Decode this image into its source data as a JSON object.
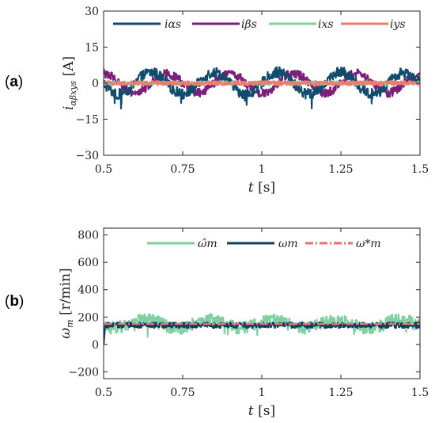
{
  "chart_data": [
    {
      "type": "line",
      "panel_label": "(a)",
      "xlabel": "t [s]",
      "ylabel": "i_αβxys [A]",
      "xlim": [
        0.5,
        1.5
      ],
      "ylim": [
        -30,
        30
      ],
      "xticks": [
        0.5,
        0.75,
        1,
        1.25,
        1.5
      ],
      "xtick_labels": [
        "0.5",
        "0.75",
        "1",
        "1.25",
        "1.5"
      ],
      "yticks": [
        -30,
        -15,
        0,
        15,
        30
      ],
      "ytick_labels": [
        "−30",
        "−15",
        "0",
        "15",
        "30"
      ],
      "legend_position": "top",
      "series": [
        {
          "name": "iαs",
          "color": "#0f4c6e",
          "kind": "sine-noisy",
          "amplitude": 4.5,
          "frequency_hz": 5.0,
          "phase": 0.0,
          "noise": 2.2,
          "x": [
            0.5,
            0.55,
            0.6,
            0.65,
            0.7,
            0.75,
            0.8,
            0.85,
            0.9,
            0.95,
            1.0,
            1.05,
            1.1,
            1.15,
            1.2,
            1.25,
            1.3,
            1.35,
            1.4,
            1.45,
            1.5
          ],
          "y": [
            0,
            3,
            4.5,
            3,
            0,
            -3,
            -4.5,
            -3,
            0,
            3,
            4.5,
            3,
            0,
            -3,
            -4.5,
            -3,
            0,
            3,
            4.5,
            3,
            0
          ]
        },
        {
          "name": "iβs",
          "color": "#7b1f7a",
          "kind": "sine-noisy",
          "amplitude": 4.0,
          "frequency_hz": 5.0,
          "phase": -1.5708,
          "noise": 1.8,
          "x": [
            0.5,
            0.55,
            0.6,
            0.65,
            0.7,
            0.75,
            0.8,
            0.85,
            0.9,
            0.95,
            1.0,
            1.05,
            1.1,
            1.15,
            1.2,
            1.25,
            1.3,
            1.35,
            1.4,
            1.45,
            1.5
          ],
          "y": [
            -4,
            -2.8,
            0,
            2.8,
            4,
            2.8,
            0,
            -2.8,
            -4,
            -2.8,
            0,
            2.8,
            4,
            2.8,
            0,
            -2.8,
            -4,
            -2.8,
            0,
            2.8,
            4
          ]
        },
        {
          "name": "ixs",
          "color": "#7fd1a3",
          "kind": "noise",
          "amplitude": 0.6,
          "frequency_hz": 0,
          "phase": 0,
          "noise": 0.8,
          "x": [
            0.5,
            1.5
          ],
          "y": [
            0,
            0
          ]
        },
        {
          "name": "iys",
          "color": "#ef7b6f",
          "kind": "noise",
          "amplitude": 0.6,
          "frequency_hz": 0,
          "phase": 0,
          "noise": 0.9,
          "x": [
            0.5,
            1.5
          ],
          "y": [
            0,
            0
          ]
        }
      ]
    },
    {
      "type": "line",
      "panel_label": "(b)",
      "xlabel": "t [s]",
      "ylabel": "ω_m [r/min]",
      "xlim": [
        0.5,
        1.5
      ],
      "ylim": [
        -250,
        850
      ],
      "xticks": [
        0.5,
        0.75,
        1,
        1.25,
        1.5
      ],
      "xtick_labels": [
        "0.5",
        "0.75",
        "1",
        "1.25",
        "1.5"
      ],
      "yticks": [
        -200,
        0,
        200,
        400,
        600,
        800
      ],
      "ytick_labels": [
        "−200",
        "0",
        "200",
        "400",
        "600",
        "800"
      ],
      "legend_position": "top",
      "series": [
        {
          "name": "ω̂m",
          "color": "#7fd1a3",
          "kind": "sine-noisy",
          "base": 150,
          "amplitude": 30,
          "frequency_hz": 5.0,
          "phase": 0.5,
          "noise": 45,
          "x": [
            0.5,
            1.5
          ],
          "y": [
            150,
            150
          ]
        },
        {
          "name": "ωm",
          "color": "#0f3f63",
          "kind": "noise",
          "base": 140,
          "amplitude": 0,
          "frequency_hz": 0,
          "phase": 0,
          "noise": 20,
          "x": [
            0.5,
            1.5
          ],
          "y": [
            140,
            140
          ]
        },
        {
          "name": "ω*m",
          "color": "#ef6f6f",
          "kind": "reference",
          "base": 150,
          "dashed": true,
          "x": [
            0.5,
            1.5
          ],
          "y": [
            150,
            150
          ]
        }
      ]
    }
  ]
}
